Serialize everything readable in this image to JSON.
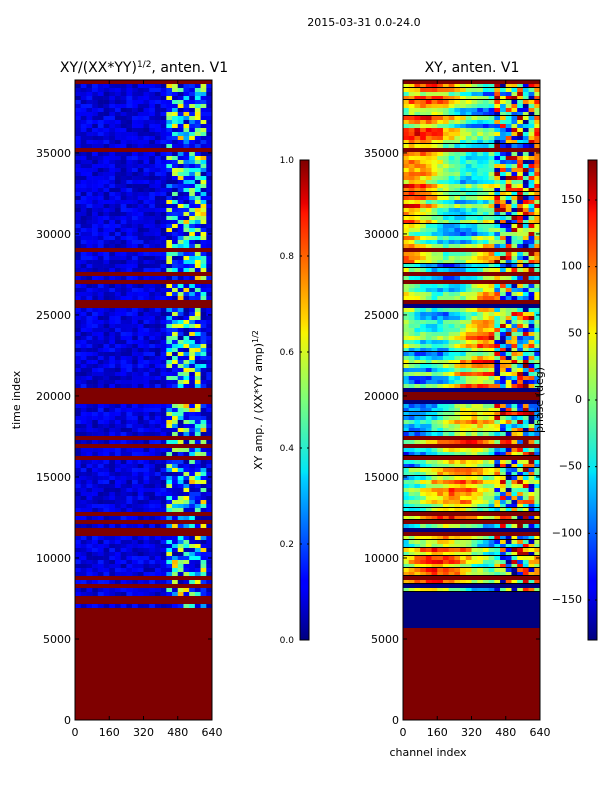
{
  "suptitle": "2015-03-31 0.0-24.0",
  "chart_data": [
    {
      "type": "heatmap",
      "title": "XY/(XX*YY)^1/2, anten. V1",
      "title_main": "XY/(XX*YY)",
      "title_sup": "1/2",
      "title_tail": ", anten. V1",
      "xlabel": "",
      "ylabel": "time index",
      "xlim": [
        0,
        640
      ],
      "ylim": [
        0,
        39500
      ],
      "xticks": [
        0,
        160,
        320,
        480,
        640
      ],
      "yticks": [
        0,
        5000,
        10000,
        15000,
        20000,
        25000,
        30000,
        35000
      ],
      "colorbar": {
        "label": "XY amp. / (XX*YY amp)^1/2",
        "label_main": "XY amp. / (XX*YY amp)",
        "label_sup": "1/2",
        "range": [
          0.0,
          1.0
        ],
        "ticks": [
          "0.0",
          "0.2",
          "0.4",
          "0.6",
          "0.8",
          "1.0"
        ],
        "tick_values": [
          0.0,
          0.2,
          0.4,
          0.6,
          0.8,
          1.0
        ]
      }
    },
    {
      "type": "heatmap",
      "title": "XY, anten. V1",
      "xlabel": "channel index",
      "ylabel": "",
      "xlim": [
        0,
        640
      ],
      "ylim": [
        0,
        39500
      ],
      "xticks": [
        0,
        160,
        320,
        480,
        640
      ],
      "yticks": [
        0,
        5000,
        10000,
        15000,
        20000,
        25000,
        30000,
        35000
      ],
      "colorbar": {
        "label": "phase (deg)",
        "range": [
          -180,
          180
        ],
        "ticks": [
          "−150",
          "−100",
          "−50",
          "0",
          "50",
          "100",
          "150"
        ],
        "tick_values": [
          -150,
          -100,
          -50,
          0,
          50,
          100,
          150
        ]
      }
    }
  ]
}
